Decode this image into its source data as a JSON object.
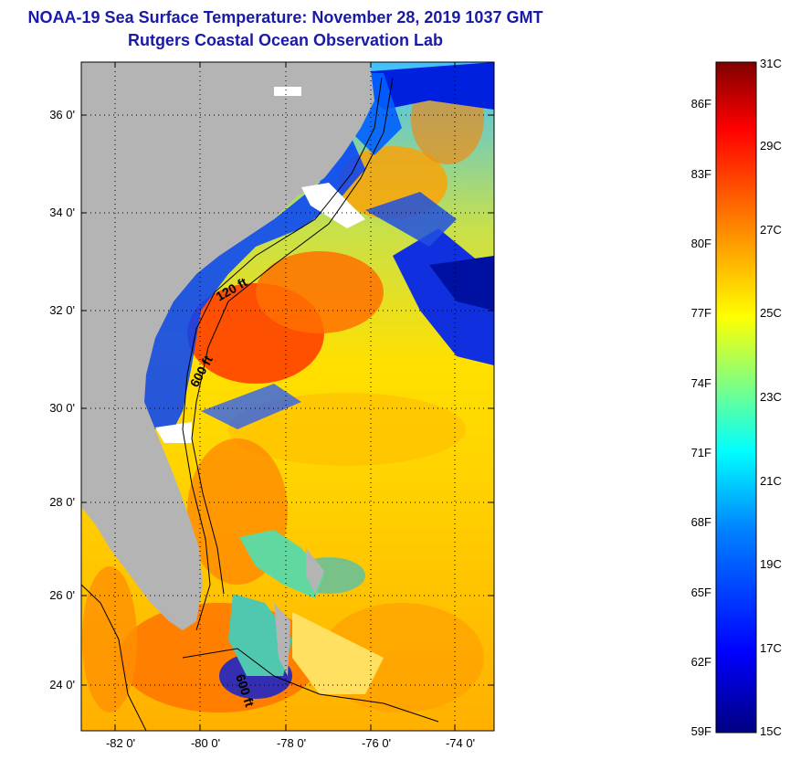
{
  "title": "NOAA-19 Sea Surface Temperature:  November 28, 2019 1037 GMT",
  "subtitle": "Rutgers Coastal Ocean Observation Lab",
  "map": {
    "lat_ticks": [
      "36 0'",
      "34 0'",
      "32 0'",
      "30 0'",
      "28 0'",
      "26 0'",
      "24 0'"
    ],
    "lon_ticks": [
      "-82 0'",
      "-80 0'",
      "-78 0'",
      "-76 0'",
      "-74 0'"
    ],
    "contours": [
      "120 ft",
      "600 ft",
      "600 ft"
    ],
    "colors": {
      "land": "#b4b4b4",
      "cloud": "#ffffff",
      "grid": "#000000"
    }
  },
  "colorbar": {
    "fahrenheit": [
      "86F",
      "83F",
      "80F",
      "77F",
      "74F",
      "71F",
      "68F",
      "65F",
      "62F",
      "59F"
    ],
    "celsius": [
      "31C",
      "29C",
      "27C",
      "25C",
      "23C",
      "21C",
      "19C",
      "17C",
      "15C"
    ],
    "gradient": [
      "#000080",
      "#0000ff",
      "#0080ff",
      "#00ffff",
      "#80ff80",
      "#ffff00",
      "#ff8000",
      "#ff0000",
      "#800000"
    ]
  }
}
